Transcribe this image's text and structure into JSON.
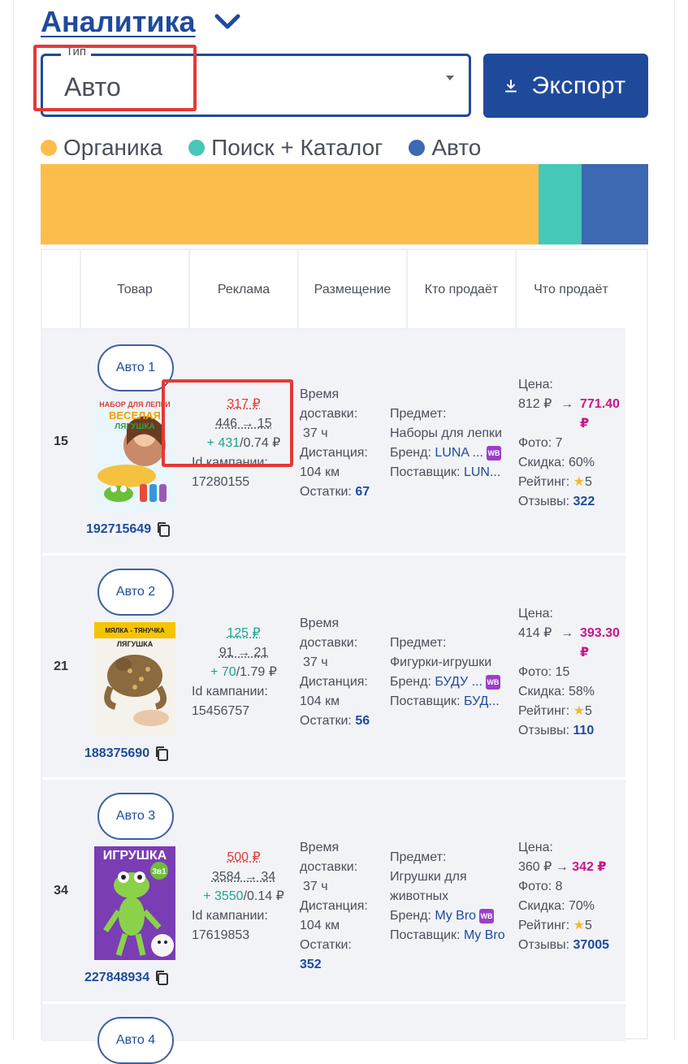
{
  "header": {
    "title": "Аналитика",
    "chevron_icon": "chevron-down-icon"
  },
  "type_select": {
    "label": "Тип",
    "value": "Авто"
  },
  "export_button": {
    "label": "Экспорт",
    "icon": "download-icon"
  },
  "legend": [
    {
      "label": "Органика",
      "color": "#fdbd4b"
    },
    {
      "label": "Поиск + Каталог",
      "color": "#46c8b6"
    },
    {
      "label": "Авто",
      "color": "#3d68b2"
    }
  ],
  "share_bar": [
    {
      "name": "Органика",
      "fraction": 0.82,
      "color": "#fdbd4b"
    },
    {
      "name": "Поиск + Каталог",
      "fraction": 0.07,
      "color": "#46c8b6"
    },
    {
      "name": "Авто",
      "fraction": 0.11,
      "color": "#3d68b2"
    }
  ],
  "table": {
    "headers": [
      "",
      "Товар",
      "Реклама",
      "Размещение",
      "Кто продаёт",
      "Что продаёт"
    ],
    "rows": [
      {
        "rank": "15",
        "badge": "Авто 1",
        "sku": "192715649",
        "ad_price": "317 ₽",
        "ad_price_color": "red",
        "ad_positions": "446 → 15",
        "ad_gain": "+ 431",
        "ad_cpc": "/0.74 ₽",
        "campaign_label": "Id кампании:",
        "campaign_id": "17280155",
        "delivery_label": "Время доставки:",
        "delivery_value": " 37 ч",
        "distance_label": "Дистанция:",
        "distance_value": "104 км",
        "stock_label": "Остатки:",
        "stock_value": "67",
        "subject_label": "Предмет:",
        "subject_value": "Наборы для лепки",
        "brand_label": "Бренд:",
        "brand_value": "LUNA ...",
        "supplier_label": "Поставщик:",
        "supplier_value": "LUN...",
        "price_label": "Цена:",
        "price_old": "812 ₽",
        "price_new": "771.40 ₽",
        "photo_label": "Фото:",
        "photo_value": "7",
        "discount_label": "Скидка:",
        "discount_value": "60%",
        "rating_label": "Рейтинг:",
        "rating_value": "5",
        "reviews_label": "Отзывы:",
        "reviews_value": "322"
      },
      {
        "rank": "21",
        "badge": "Авто 2",
        "sku": "188375690",
        "ad_price": "125 ₽",
        "ad_price_color": "green",
        "ad_positions": "91 → 21",
        "ad_gain": "+ 70",
        "ad_cpc": "/1.79 ₽",
        "campaign_label": "Id кампании:",
        "campaign_id": "15456757",
        "delivery_label": "Время доставки:",
        "delivery_value": " 37 ч",
        "distance_label": "Дистанция:",
        "distance_value": "104 км",
        "stock_label": "Остатки:",
        "stock_value": "56",
        "subject_label": "Предмет:",
        "subject_value": "Фигурки-игрушки",
        "brand_label": "Бренд:",
        "brand_value": "БУДУ ...",
        "supplier_label": "Поставщик:",
        "supplier_value": "БУД...",
        "price_label": "Цена:",
        "price_old": "414 ₽",
        "price_new": "393.30 ₽",
        "photo_label": "Фото:",
        "photo_value": "15",
        "discount_label": "Скидка:",
        "discount_value": "58%",
        "rating_label": "Рейтинг:",
        "rating_value": "5",
        "reviews_label": "Отзывы:",
        "reviews_value": "110"
      },
      {
        "rank": "34",
        "badge": "Авто 3",
        "sku": "227848934",
        "ad_price": "500 ₽",
        "ad_price_color": "red",
        "ad_positions": "3584 → 34",
        "ad_gain": "+ 3550",
        "ad_cpc": "/0.14 ₽",
        "campaign_label": "Id кампании:",
        "campaign_id": "17619853",
        "delivery_label": "Время доставки:",
        "delivery_value": " 37 ч",
        "distance_label": "Дистанция:",
        "distance_value": "104 км",
        "stock_label": "Остатки:",
        "stock_value": "352",
        "subject_label": "Предмет:",
        "subject_value": "Игрушки для животных",
        "brand_label": "Бренд:",
        "brand_value": "My Bro",
        "supplier_label": "Поставщик:",
        "supplier_value": "My Bro",
        "price_label": "Цена:",
        "price_old": "360 ₽",
        "price_new": "342 ₽",
        "photo_label": "Фото:",
        "photo_value": "8",
        "discount_label": "Скидка:",
        "discount_value": "70%",
        "rating_label": "Рейтинг:",
        "rating_value": "5",
        "reviews_label": "Отзывы:",
        "reviews_value": "37005"
      },
      {
        "badge": "Авто 4"
      }
    ]
  },
  "thumb_texts": {
    "t1_line1": "НАБОР ДЛЯ ЛЕПКИ",
    "t1_line2": "ВЕСЕЛАЯ",
    "t1_line3": "ЛЯГУШКА",
    "t2_line1": "МЯЛКА - ТЯНУЧКА",
    "t2_line2": "ЛЯГУШКА",
    "t3_line1": "ИГРУШКА",
    "t3_line2": "3в1"
  },
  "wb_badge": "WB"
}
